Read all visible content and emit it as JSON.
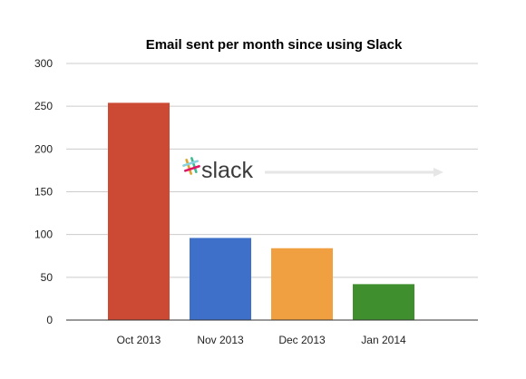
{
  "chart_data": {
    "type": "bar",
    "title": "Email sent per month since using Slack",
    "xlabel": "",
    "ylabel": "",
    "categories": [
      "Oct 2013",
      "Nov 2013",
      "Dec 2013",
      "Jan 2014"
    ],
    "values": [
      254,
      96,
      84,
      42
    ],
    "bar_colors": [
      "#cc4a33",
      "#3e6fc9",
      "#f0a040",
      "#3f8f2f"
    ],
    "ylim": [
      0,
      300
    ],
    "yticks": [
      0,
      50,
      100,
      150,
      200,
      250,
      300
    ],
    "grid": true,
    "legend": "none"
  },
  "annotation": {
    "logo_text": "slack",
    "logo_icon": "slack-hash-icon",
    "arrow_icon": "right-arrow-icon"
  }
}
